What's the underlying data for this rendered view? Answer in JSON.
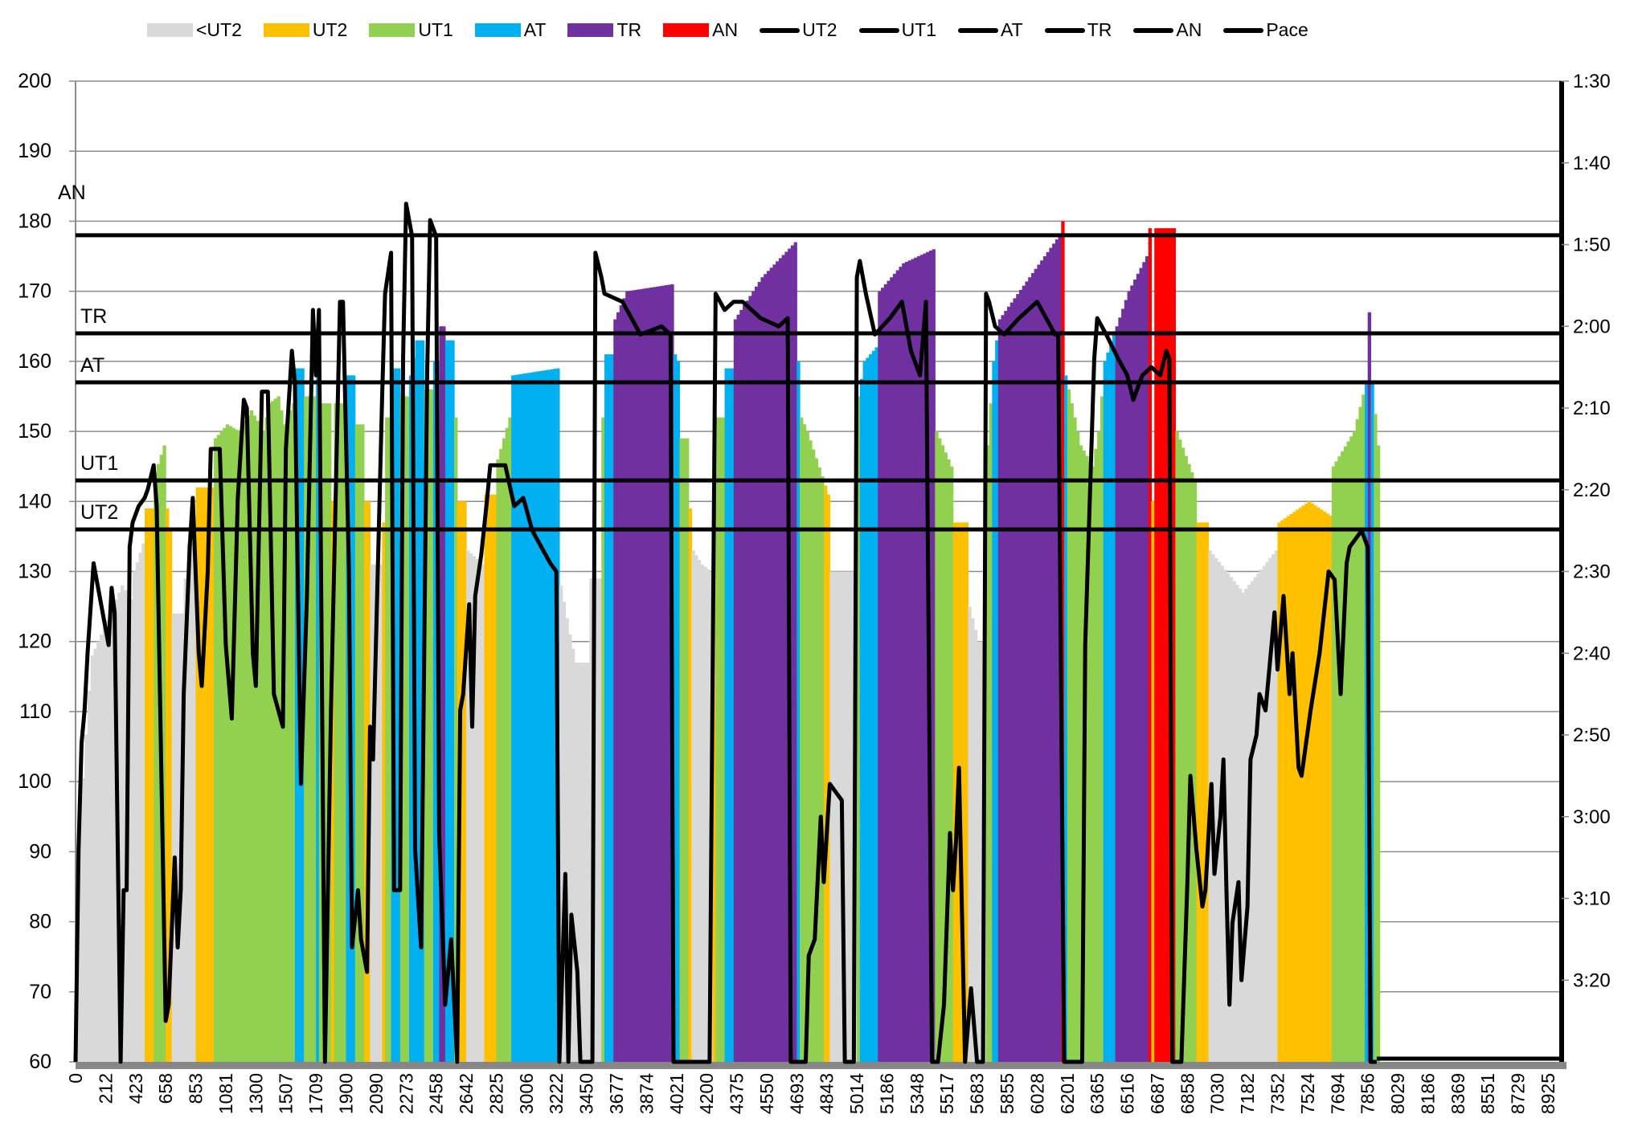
{
  "chart_data": {
    "type": "bar",
    "title": "",
    "xlabel": "",
    "ylabel": "",
    "ylim": [
      60,
      200
    ],
    "y_ticks": [
      "60",
      "70",
      "80",
      "90",
      "100",
      "110",
      "120",
      "130",
      "140",
      "150",
      "160",
      "170",
      "180",
      "190",
      "200"
    ],
    "y2_ticks": [
      "1:30",
      "1:40",
      "1:50",
      "2:00",
      "2:10",
      "2:20",
      "2:30",
      "2:40",
      "2:50",
      "3:00",
      "3:10",
      "3:20"
    ],
    "y2_range_seconds": [
      90,
      210
    ],
    "y2_reversed": true,
    "grid": true,
    "legend_position": "top",
    "x_tick_labels": [
      "0",
      "212",
      "423",
      "658",
      "853",
      "1081",
      "1300",
      "1507",
      "1709",
      "1900",
      "2090",
      "2273",
      "2458",
      "2642",
      "2825",
      "3006",
      "3222",
      "3450",
      "3677",
      "3874",
      "4021",
      "4200",
      "4375",
      "4550",
      "4693",
      "4843",
      "5014",
      "5186",
      "5348",
      "5517",
      "5683",
      "5855",
      "6028",
      "6201",
      "6365",
      "6516",
      "6687",
      "6858",
      "7030",
      "7182",
      "7352",
      "7524",
      "7694",
      "7856",
      "8029",
      "8186",
      "8369",
      "8551",
      "8729",
      "8925"
    ],
    "samples_per_tick": 10,
    "sample_count": 434,
    "legend": [
      {
        "label": "<UT2",
        "kind": "bar",
        "color": "#d9d9d9"
      },
      {
        "label": "UT2",
        "kind": "bar",
        "color": "#ffc000"
      },
      {
        "label": "UT1",
        "kind": "bar",
        "color": "#92d050"
      },
      {
        "label": "AT",
        "kind": "bar",
        "color": "#00b0f0"
      },
      {
        "label": "TR",
        "kind": "bar",
        "color": "#7030a0"
      },
      {
        "label": "AN",
        "kind": "bar",
        "color": "#ff0000"
      },
      {
        "label": "UT2",
        "kind": "line",
        "color": "#000000"
      },
      {
        "label": "UT1",
        "kind": "line",
        "color": "#000000"
      },
      {
        "label": "AT",
        "kind": "line",
        "color": "#000000"
      },
      {
        "label": "TR",
        "kind": "line",
        "color": "#000000"
      },
      {
        "label": "AN",
        "kind": "line",
        "color": "#000000"
      },
      {
        "label": "Pace",
        "kind": "line",
        "color": "#000000"
      }
    ],
    "zones": [
      {
        "name": "<UT2",
        "min": 0,
        "color": "#d9d9d9"
      },
      {
        "name": "UT2",
        "min": 136,
        "color": "#ffc000"
      },
      {
        "name": "UT1",
        "min": 143,
        "color": "#92d050"
      },
      {
        "name": "AT",
        "min": 157,
        "color": "#00b0f0"
      },
      {
        "name": "TR",
        "min": 164.5,
        "color": "#7030a0"
      },
      {
        "name": "AN",
        "min": 178.5,
        "color": "#ff0000"
      }
    ],
    "thresholds": [
      {
        "label": "AN",
        "value": 178
      },
      {
        "label": "TR",
        "value": 164
      },
      {
        "label": "AT",
        "value": 157
      },
      {
        "label": "UT1",
        "value": 143
      },
      {
        "label": "UT2",
        "value": 136
      }
    ],
    "heart_rate_keypoints": [
      [
        0,
        88
      ],
      [
        4,
        113
      ],
      [
        5,
        118
      ],
      [
        7,
        120
      ],
      [
        9,
        122
      ],
      [
        12,
        125
      ],
      [
        15,
        128
      ],
      [
        18,
        126
      ],
      [
        19,
        130
      ],
      [
        22,
        134
      ],
      [
        23,
        139
      ],
      [
        25,
        139
      ],
      [
        26,
        144
      ],
      [
        29,
        148
      ],
      [
        30,
        139
      ],
      [
        31,
        136
      ],
      [
        32,
        124
      ],
      [
        35,
        124
      ],
      [
        37,
        134
      ],
      [
        39,
        134
      ],
      [
        40,
        142
      ],
      [
        45,
        142
      ],
      [
        46,
        149
      ],
      [
        50,
        151
      ],
      [
        54,
        150
      ],
      [
        58,
        153
      ],
      [
        62,
        150
      ],
      [
        64,
        154
      ],
      [
        67,
        155
      ],
      [
        69,
        151
      ],
      [
        72,
        154
      ],
      [
        73,
        159
      ],
      [
        75,
        159
      ],
      [
        76,
        155
      ],
      [
        79,
        155
      ],
      [
        80,
        159
      ],
      [
        81,
        154
      ],
      [
        84,
        154
      ],
      [
        85,
        140
      ],
      [
        86,
        154
      ],
      [
        89,
        154
      ],
      [
        90,
        158
      ],
      [
        92,
        158
      ],
      [
        93,
        151
      ],
      [
        95,
        151
      ],
      [
        96,
        140
      ],
      [
        97,
        140
      ],
      [
        98,
        131
      ],
      [
        101,
        131
      ],
      [
        102,
        137
      ],
      [
        103,
        152
      ],
      [
        104,
        152
      ],
      [
        105,
        159
      ],
      [
        107,
        159
      ],
      [
        108,
        155
      ],
      [
        110,
        155
      ],
      [
        111,
        158
      ],
      [
        113,
        163
      ],
      [
        115,
        163
      ],
      [
        116,
        156
      ],
      [
        118,
        156
      ],
      [
        119,
        160
      ],
      [
        120,
        160
      ],
      [
        121,
        165
      ],
      [
        122,
        165
      ],
      [
        123,
        163
      ],
      [
        125,
        163
      ],
      [
        126,
        152
      ],
      [
        127,
        140
      ],
      [
        129,
        140
      ],
      [
        130,
        133
      ],
      [
        135,
        131
      ],
      [
        136,
        141
      ],
      [
        139,
        141
      ],
      [
        140,
        146
      ],
      [
        144,
        152
      ],
      [
        145,
        158
      ],
      [
        160,
        159
      ],
      [
        161,
        128
      ],
      [
        164,
        121
      ],
      [
        166,
        117
      ],
      [
        170,
        117
      ],
      [
        171,
        129
      ],
      [
        174,
        129
      ],
      [
        175,
        152
      ],
      [
        176,
        161
      ],
      [
        178,
        161
      ],
      [
        179,
        166
      ],
      [
        183,
        170
      ],
      [
        198,
        171
      ],
      [
        199,
        161
      ],
      [
        200,
        160
      ],
      [
        201,
        149
      ],
      [
        203,
        149
      ],
      [
        204,
        139
      ],
      [
        205,
        133
      ],
      [
        208,
        131
      ],
      [
        211,
        130
      ],
      [
        212,
        137
      ],
      [
        213,
        152
      ],
      [
        215,
        152
      ],
      [
        216,
        159
      ],
      [
        218,
        159
      ],
      [
        219,
        166
      ],
      [
        228,
        172
      ],
      [
        239,
        177
      ],
      [
        240,
        160
      ],
      [
        241,
        152
      ],
      [
        243,
        150
      ],
      [
        250,
        141
      ],
      [
        251,
        130
      ],
      [
        259,
        130
      ],
      [
        260,
        155
      ],
      [
        262,
        160
      ],
      [
        266,
        162
      ],
      [
        267,
        170
      ],
      [
        275,
        174
      ],
      [
        285,
        176
      ],
      [
        286,
        150
      ],
      [
        291,
        145
      ],
      [
        292,
        137
      ],
      [
        296,
        137
      ],
      [
        297,
        125
      ],
      [
        300,
        120
      ],
      [
        302,
        120
      ],
      [
        303,
        148
      ],
      [
        305,
        160
      ],
      [
        307,
        166
      ],
      [
        317,
        172
      ],
      [
        327,
        178
      ],
      [
        328,
        180
      ],
      [
        329,
        158
      ],
      [
        334,
        148
      ],
      [
        338,
        145
      ],
      [
        340,
        150
      ],
      [
        342,
        160
      ],
      [
        350,
        170
      ],
      [
        356,
        175
      ],
      [
        357,
        179
      ],
      [
        358,
        140
      ],
      [
        359,
        179
      ],
      [
        365,
        179
      ],
      [
        366,
        150
      ],
      [
        372,
        143
      ],
      [
        373,
        137
      ],
      [
        376,
        137
      ],
      [
        377,
        133
      ],
      [
        388,
        127
      ],
      [
        399,
        133
      ],
      [
        400,
        137
      ],
      [
        410,
        140
      ],
      [
        417,
        138
      ],
      [
        418,
        145
      ],
      [
        425,
        150
      ],
      [
        429,
        157
      ],
      [
        430,
        167
      ],
      [
        431,
        157
      ],
      [
        433,
        148
      ]
    ],
    "pace_seconds_keypoints": [
      [
        0,
        210
      ],
      [
        1,
        184
      ],
      [
        2,
        171
      ],
      [
        3,
        167
      ],
      [
        4,
        160
      ],
      [
        6,
        149
      ],
      [
        8,
        153
      ],
      [
        10,
        157
      ],
      [
        11,
        159
      ],
      [
        12,
        152
      ],
      [
        13,
        155
      ],
      [
        15,
        210
      ],
      [
        16,
        189
      ],
      [
        17,
        189
      ],
      [
        18,
        147
      ],
      [
        19,
        144
      ],
      [
        21,
        142
      ],
      [
        23,
        141
      ],
      [
        24,
        140
      ],
      [
        26,
        137
      ],
      [
        27,
        142
      ],
      [
        28,
        163
      ],
      [
        30,
        205
      ],
      [
        31,
        203
      ],
      [
        33,
        185
      ],
      [
        34,
        196
      ],
      [
        35,
        189
      ],
      [
        36,
        165
      ],
      [
        38,
        147
      ],
      [
        39,
        141
      ],
      [
        41,
        160
      ],
      [
        42,
        164
      ],
      [
        44,
        150
      ],
      [
        45,
        135
      ],
      [
        48,
        135
      ],
      [
        50,
        159
      ],
      [
        52,
        168
      ],
      [
        54,
        141
      ],
      [
        56,
        129
      ],
      [
        57,
        130
      ],
      [
        59,
        160
      ],
      [
        60,
        164
      ],
      [
        62,
        128
      ],
      [
        64,
        128
      ],
      [
        66,
        165
      ],
      [
        69,
        169
      ],
      [
        70,
        135
      ],
      [
        72,
        123
      ],
      [
        73,
        127
      ],
      [
        75,
        176
      ],
      [
        77,
        153
      ],
      [
        79,
        118
      ],
      [
        80,
        126
      ],
      [
        81,
        118
      ],
      [
        83,
        210
      ],
      [
        85,
        167
      ],
      [
        88,
        117
      ],
      [
        89,
        117
      ],
      [
        91,
        150
      ],
      [
        92,
        196
      ],
      [
        94,
        189
      ],
      [
        95,
        195
      ],
      [
        97,
        199
      ],
      [
        98,
        169
      ],
      [
        99,
        173
      ],
      [
        102,
        129
      ],
      [
        103,
        116
      ],
      [
        105,
        111
      ],
      [
        106,
        189
      ],
      [
        108,
        189
      ],
      [
        109,
        124
      ],
      [
        110,
        105
      ],
      [
        112,
        109
      ],
      [
        113,
        184
      ],
      [
        115,
        196
      ],
      [
        117,
        126
      ],
      [
        118,
        107
      ],
      [
        120,
        109
      ],
      [
        121,
        182
      ],
      [
        123,
        203
      ],
      [
        125,
        195
      ],
      [
        127,
        210
      ],
      [
        128,
        167
      ],
      [
        129,
        165
      ],
      [
        131,
        154
      ],
      [
        132,
        169
      ],
      [
        133,
        153
      ],
      [
        135,
        148
      ],
      [
        137,
        141
      ],
      [
        138,
        137
      ],
      [
        143,
        137
      ],
      [
        146,
        142
      ],
      [
        149,
        141
      ],
      [
        152,
        145
      ],
      [
        155,
        147
      ],
      [
        158,
        149
      ],
      [
        160,
        150
      ],
      [
        161,
        210
      ],
      [
        163,
        187
      ],
      [
        164,
        210
      ],
      [
        165,
        192
      ],
      [
        167,
        199
      ],
      [
        168,
        210
      ],
      [
        172,
        210
      ],
      [
        173,
        111
      ],
      [
        175,
        114
      ],
      [
        176,
        116
      ],
      [
        182,
        117
      ],
      [
        188,
        121
      ],
      [
        195,
        120
      ],
      [
        198,
        121
      ],
      [
        199,
        210
      ],
      [
        211,
        210
      ],
      [
        213,
        116
      ],
      [
        216,
        118
      ],
      [
        219,
        117
      ],
      [
        222,
        117
      ],
      [
        225,
        118
      ],
      [
        228,
        119
      ],
      [
        234,
        120
      ],
      [
        237,
        119
      ],
      [
        238,
        210
      ],
      [
        243,
        210
      ],
      [
        244,
        197
      ],
      [
        246,
        195
      ],
      [
        248,
        180
      ],
      [
        249,
        188
      ],
      [
        251,
        176
      ],
      [
        253,
        177
      ],
      [
        255,
        178
      ],
      [
        256,
        210
      ],
      [
        259,
        210
      ],
      [
        260,
        114
      ],
      [
        261,
        112
      ],
      [
        263,
        116
      ],
      [
        266,
        121
      ],
      [
        271,
        119
      ],
      [
        275,
        117
      ],
      [
        278,
        123
      ],
      [
        281,
        126
      ],
      [
        283,
        117
      ],
      [
        285,
        210
      ],
      [
        287,
        210
      ],
      [
        289,
        203
      ],
      [
        291,
        182
      ],
      [
        292,
        189
      ],
      [
        293,
        183
      ],
      [
        294,
        174
      ],
      [
        296,
        210
      ],
      [
        298,
        201
      ],
      [
        300,
        210
      ],
      [
        302,
        210
      ],
      [
        303,
        116
      ],
      [
        304,
        117
      ],
      [
        306,
        120
      ],
      [
        309,
        121
      ],
      [
        314,
        119
      ],
      [
        320,
        117
      ],
      [
        326,
        121
      ],
      [
        327,
        121
      ],
      [
        329,
        210
      ],
      [
        335,
        210
      ],
      [
        336,
        159
      ],
      [
        339,
        124
      ],
      [
        340,
        119
      ],
      [
        343,
        121
      ],
      [
        347,
        124
      ],
      [
        350,
        126
      ],
      [
        352,
        129
      ],
      [
        355,
        126
      ],
      [
        358,
        125
      ],
      [
        361,
        126
      ],
      [
        363,
        123
      ],
      [
        364,
        124
      ],
      [
        365,
        210
      ],
      [
        368,
        210
      ],
      [
        370,
        188
      ],
      [
        371,
        175
      ],
      [
        373,
        184
      ],
      [
        375,
        191
      ],
      [
        376,
        189
      ],
      [
        378,
        176
      ],
      [
        379,
        187
      ],
      [
        381,
        180
      ],
      [
        382,
        173
      ],
      [
        383,
        189
      ],
      [
        384,
        203
      ],
      [
        385,
        193
      ],
      [
        387,
        188
      ],
      [
        388,
        200
      ],
      [
        390,
        191
      ],
      [
        391,
        173
      ],
      [
        393,
        170
      ],
      [
        394,
        165
      ],
      [
        396,
        167
      ],
      [
        399,
        155
      ],
      [
        400,
        162
      ],
      [
        402,
        153
      ],
      [
        404,
        165
      ],
      [
        405,
        160
      ],
      [
        407,
        174
      ],
      [
        408,
        175
      ],
      [
        411,
        167
      ],
      [
        414,
        160
      ],
      [
        417,
        150
      ],
      [
        419,
        151
      ],
      [
        421,
        165
      ],
      [
        423,
        149
      ],
      [
        424,
        147
      ],
      [
        426,
        146
      ],
      [
        428,
        145
      ],
      [
        430,
        147
      ],
      [
        431,
        210
      ],
      [
        433,
        210
      ]
    ]
  }
}
